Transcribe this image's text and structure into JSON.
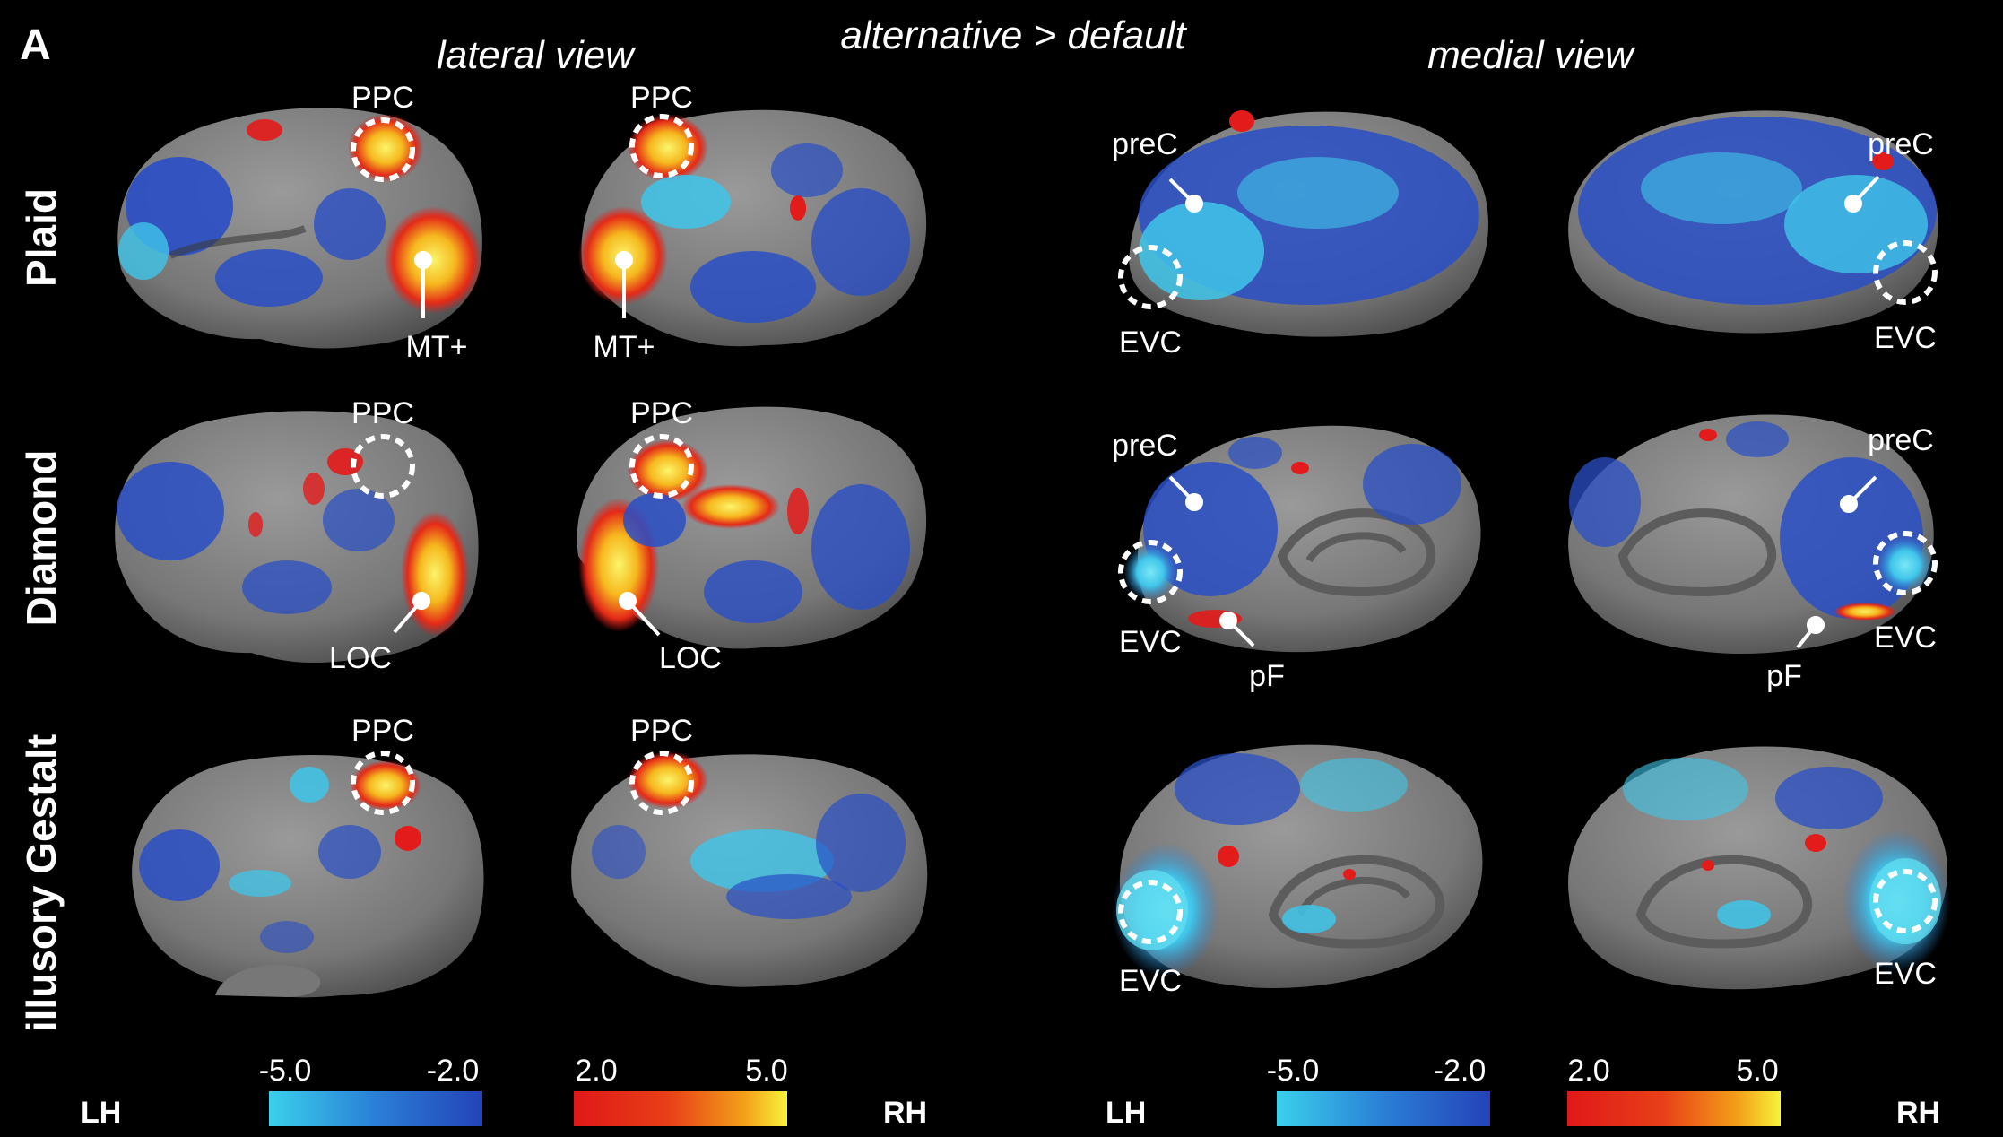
{
  "panel_letter": "A",
  "header": {
    "contrast": "alternative > default",
    "lateral": "lateral view",
    "medial": "medial view"
  },
  "rows": [
    "Plaid",
    "Diamond",
    "illusory Gestalt"
  ],
  "roi_labels": {
    "ppc": "PPC",
    "mt": "MT+",
    "loc": "LOC",
    "prec": "preC",
    "evc": "EVC",
    "pf": "pF"
  },
  "colorbars": {
    "neg_min": "-5.0",
    "neg_max": "-2.0",
    "pos_min": "2.0",
    "pos_max": "5.0",
    "neg_colors": [
      "#3ad0ec",
      "#2a7fd6",
      "#2443b8"
    ],
    "pos_colors": [
      "#e01818",
      "#e84018",
      "#f3a019",
      "#f7f33a"
    ]
  },
  "hemispheres": {
    "left": "LH",
    "right": "RH"
  },
  "colors": {
    "cortex_gyri": "#8c8c8c",
    "cortex_sulci": "#5c5c5c",
    "negative": "#2a4fc6",
    "negative_strong": "#4fd4ee",
    "positive": "#e41b1b",
    "positive_strong": "#f8ee40"
  }
}
